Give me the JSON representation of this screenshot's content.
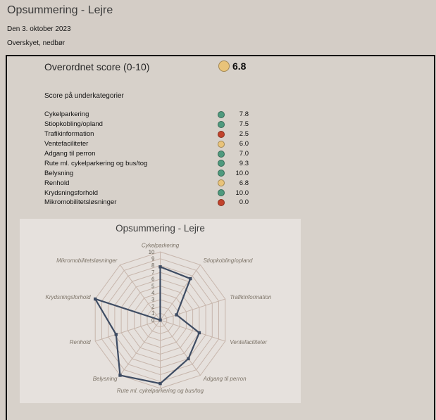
{
  "header": {
    "title": "Opsummering - Lejre",
    "date": "Den 3. oktober 2023",
    "weather": "Overskyet, nedbør"
  },
  "overall": {
    "label": "Overordnet score (0-10)",
    "value": "6.8",
    "level": "yellow"
  },
  "scores": {
    "heading": "Score på underkategorier",
    "items": [
      {
        "label": "Cykelparkering",
        "value": "7.8",
        "level": "green"
      },
      {
        "label": "Stiopkobling/opland",
        "value": "7.5",
        "level": "green"
      },
      {
        "label": "Trafikinformation",
        "value": "2.5",
        "level": "red"
      },
      {
        "label": "Ventefaciliteter",
        "value": "6.0",
        "level": "yellow"
      },
      {
        "label": "Adgang til perron",
        "value": "7.0",
        "level": "green"
      },
      {
        "label": "Rute ml. cykelparkering og bus/tog",
        "value": "9.3",
        "level": "green"
      },
      {
        "label": "Belysning",
        "value": "10.0",
        "level": "green"
      },
      {
        "label": "Renhold",
        "value": "6.8",
        "level": "yellow"
      },
      {
        "label": "Krydsningsforhold",
        "value": "10.0",
        "level": "green"
      },
      {
        "label": "Mikromobilitetsløsninger",
        "value": "0.0",
        "level": "red"
      }
    ]
  },
  "status_colors": {
    "green": "#4f9a7e",
    "yellow": "#e9c379",
    "red": "#c2432c"
  },
  "chart_data": {
    "type": "radar",
    "title": "Opsummering - Lejre",
    "categories": [
      "Cykelparkering",
      "Stiopkobling/opland",
      "Trafikinformation",
      "Ventefaciliteter",
      "Adgang til perron",
      "Rute ml. cykelparkering og bus/tog",
      "Belysning",
      "Renhold",
      "Krydsningsforhold",
      "Mikromobilitetsløsninger"
    ],
    "values": [
      7.8,
      7.5,
      2.5,
      6.0,
      7.0,
      9.3,
      10.0,
      6.8,
      10.0,
      0.0
    ],
    "rmin": 0,
    "rmax": 10,
    "tick_step": 1,
    "grid": "on",
    "legend": "none",
    "line_color": "#3e4c63",
    "grid_color": "#c7b6ac",
    "tick_color": "#6b6459",
    "label_color": "#7d7468"
  }
}
